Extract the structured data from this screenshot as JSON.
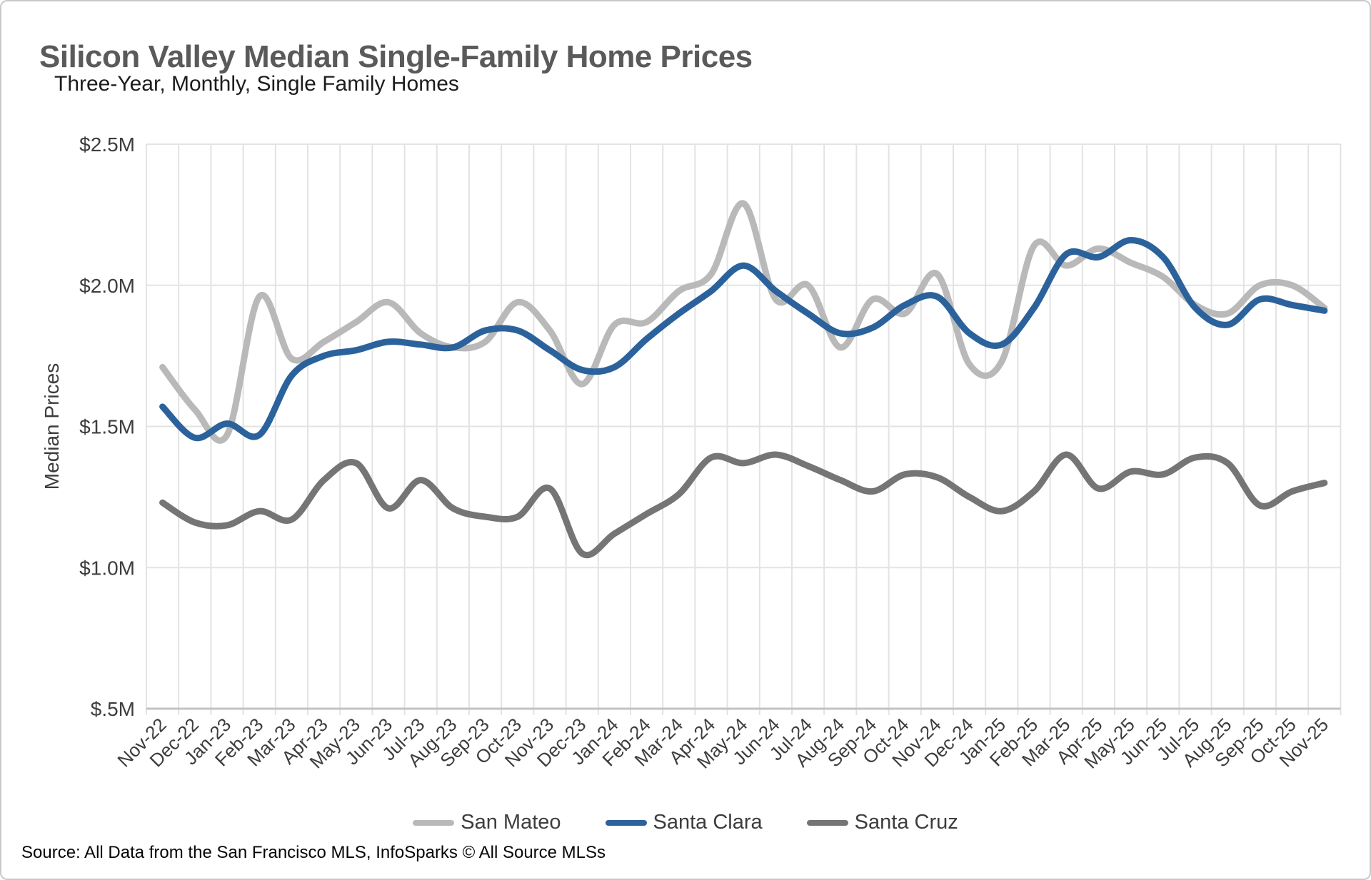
{
  "header": {
    "title": "Silicon Valley Median Single-Family Home Prices",
    "subtitle": "Three-Year, Monthly, Single Family Homes"
  },
  "chart_data": {
    "type": "line",
    "title": "Silicon Valley Median Single-Family Home Prices",
    "subtitle": "Three-Year, Monthly, Single Family Homes",
    "xlabel": "",
    "ylabel": "Median Prices",
    "ylim": [
      0.5,
      2.5
    ],
    "yticks": {
      "values": [
        2.5,
        2.0,
        1.5,
        1.0,
        0.5
      ],
      "labels": [
        "$2.5M",
        "$2.0M",
        "$1.5M",
        "$1.0M",
        "$.5M"
      ]
    },
    "grid": true,
    "legend_position": "bottom",
    "x_label_rotation": -45,
    "categories": [
      "Nov-22",
      "Dec-22",
      "Jan-23",
      "Feb-23",
      "Mar-23",
      "Apr-23",
      "May-23",
      "Jun-23",
      "Jul-23",
      "Aug-23",
      "Sep-23",
      "Oct-23",
      "Nov-23",
      "Dec-23",
      "Jan-24",
      "Feb-24",
      "Mar-24",
      "Apr-24",
      "May-24",
      "Jun-24",
      "Jul-24",
      "Aug-24",
      "Sep-24",
      "Oct-24",
      "Nov-24",
      "Dec-24",
      "Jan-25",
      "Feb-25",
      "Mar-25",
      "Apr-25",
      "May-25",
      "Jun-25",
      "Jul-25",
      "Aug-25",
      "Sep-25",
      "Oct-25",
      "Nov-25"
    ],
    "series": [
      {
        "name": "San Mateo",
        "color": "#b9b9b9",
        "values": [
          1.71,
          1.56,
          1.47,
          1.96,
          1.74,
          1.8,
          1.87,
          1.94,
          1.83,
          1.78,
          1.8,
          1.94,
          1.84,
          1.65,
          1.86,
          1.87,
          1.98,
          2.04,
          2.29,
          1.95,
          2.0,
          1.78,
          1.95,
          1.9,
          2.04,
          1.72,
          1.73,
          2.14,
          2.07,
          2.13,
          2.08,
          2.03,
          1.93,
          1.9,
          2.0,
          2.0,
          1.92
        ]
      },
      {
        "name": "Santa Clara",
        "color": "#2b629c",
        "values": [
          1.57,
          1.46,
          1.51,
          1.47,
          1.68,
          1.75,
          1.77,
          1.8,
          1.79,
          1.78,
          1.84,
          1.84,
          1.77,
          1.7,
          1.71,
          1.81,
          1.9,
          1.98,
          2.07,
          1.98,
          1.9,
          1.83,
          1.85,
          1.93,
          1.96,
          1.83,
          1.79,
          1.92,
          2.11,
          2.1,
          2.16,
          2.1,
          1.92,
          1.86,
          1.95,
          1.93,
          1.91
        ]
      },
      {
        "name": "Santa Cruz",
        "color": "#757575",
        "values": [
          1.23,
          1.16,
          1.15,
          1.2,
          1.17,
          1.31,
          1.37,
          1.21,
          1.31,
          1.21,
          1.18,
          1.18,
          1.28,
          1.05,
          1.12,
          1.19,
          1.26,
          1.39,
          1.37,
          1.4,
          1.36,
          1.31,
          1.27,
          1.33,
          1.32,
          1.25,
          1.2,
          1.27,
          1.4,
          1.28,
          1.34,
          1.33,
          1.39,
          1.37,
          1.22,
          1.27,
          1.3
        ]
      }
    ]
  },
  "footer": {
    "source": "Source: All Data from the San Francisco MLS, InfoSparks © All Source MLSs"
  }
}
